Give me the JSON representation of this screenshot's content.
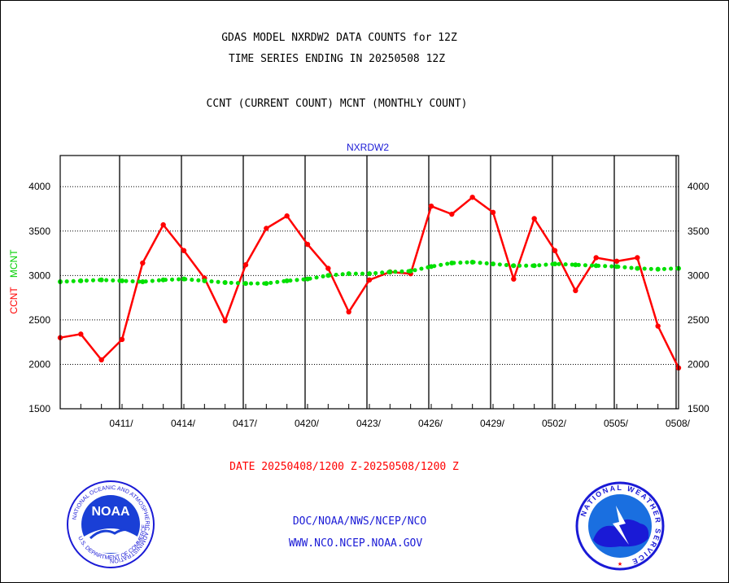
{
  "header": {
    "line1": "GDAS MODEL NXRDW2 DATA COUNTS for 12Z",
    "line2": "TIME SERIES ENDING IN 20250508 12Z",
    "line3": "CCNT (CURRENT COUNT) MCNT (MONTHLY COUNT)"
  },
  "chart_data": {
    "type": "line",
    "title": "NXRDW2",
    "ylabel_parts": [
      "CCNT",
      "MCNT"
    ],
    "ylim": [
      1500,
      4350
    ],
    "yticks": [
      1500,
      2000,
      2500,
      3000,
      3500,
      4000
    ],
    "xlim": [
      0,
      30
    ],
    "x_tick_labels": [
      {
        "x": 3,
        "label": "0411/"
      },
      {
        "x": 6,
        "label": "0414/"
      },
      {
        "x": 9,
        "label": "0417/"
      },
      {
        "x": 12,
        "label": "0420/"
      },
      {
        "x": 15,
        "label": "0423/"
      },
      {
        "x": 18,
        "label": "0426/"
      },
      {
        "x": 21,
        "label": "0429/"
      },
      {
        "x": 24,
        "label": "0502/"
      },
      {
        "x": 27,
        "label": "0505/"
      },
      {
        "x": 30,
        "label": "0508/"
      }
    ],
    "grid": true,
    "series": [
      {
        "name": "CCNT",
        "color": "#ff0000",
        "style": "solid",
        "x": [
          0,
          1,
          2,
          3,
          4,
          5,
          6,
          7,
          8,
          9,
          10,
          11,
          12,
          13,
          14,
          15,
          16,
          17,
          18,
          19,
          20,
          21,
          22,
          23,
          24,
          25,
          26,
          27,
          28,
          29,
          30
        ],
        "values": [
          2300,
          2340,
          2050,
          2280,
          3140,
          3570,
          3280,
          2970,
          2490,
          3120,
          3530,
          3670,
          3350,
          3080,
          2590,
          2950,
          3040,
          3020,
          3780,
          3690,
          3880,
          3710,
          2960,
          3640,
          3280,
          2830,
          3200,
          3160,
          3200,
          2430,
          1960
        ]
      },
      {
        "name": "MCNT",
        "color": "#00e000",
        "style": "dotted",
        "x": [
          0,
          1,
          2,
          3,
          4,
          5,
          6,
          7,
          8,
          9,
          10,
          11,
          12,
          13,
          14,
          15,
          16,
          17,
          18,
          19,
          20,
          21,
          22,
          23,
          24,
          25,
          26,
          27,
          28,
          29,
          30
        ],
        "values": [
          2930,
          2940,
          2950,
          2940,
          2930,
          2950,
          2960,
          2940,
          2920,
          2910,
          2910,
          2940,
          2960,
          3000,
          3020,
          3020,
          3040,
          3050,
          3100,
          3140,
          3150,
          3130,
          3110,
          3110,
          3130,
          3120,
          3110,
          3100,
          3080,
          3070,
          3080
        ]
      }
    ]
  },
  "footer": {
    "date_range": "DATE 20250408/1200 Z-20250508/1200 Z",
    "link1": "DOC/NOAA/NWS/NCEP/NCO",
    "link2": "WWW.NCO.NCEP.NOAA.GOV",
    "noaa_logo_text": "NOAA",
    "noaa_ring_text": "NATIONAL OCEANIC AND ATMOSPHERIC ADMINISTRATION",
    "noaa_ring_bottom": "U.S. DEPARTMENT OF COMMERCE",
    "nws_ring_text": "NATIONAL WEATHER SERVICE"
  }
}
